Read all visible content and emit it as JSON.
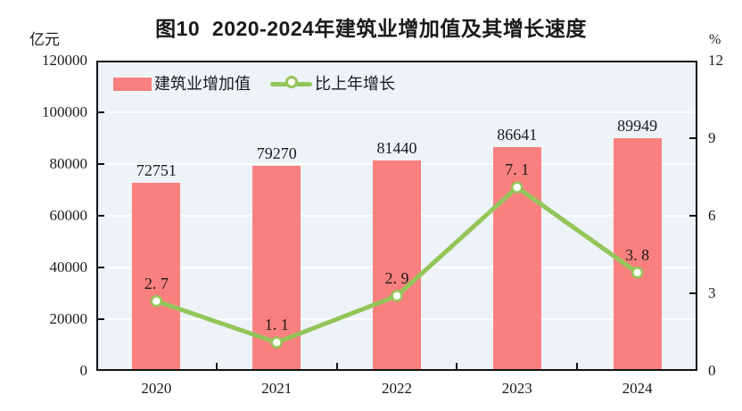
{
  "figure": {
    "title": "图10  2020-2024年建筑业增加值及其增长速度",
    "left_unit": "亿元",
    "right_unit": "%"
  },
  "legend": {
    "bar_label": "建筑业增加值",
    "line_label": "比上年增长"
  },
  "chart_data": {
    "type": "bar+line",
    "title": "图10 2020-2024年建筑业增加值及其增长速度",
    "categories": [
      "2020",
      "2021",
      "2022",
      "2023",
      "2024"
    ],
    "series": [
      {
        "name": "建筑业增加值",
        "type": "bar",
        "axis": "left",
        "unit": "亿元",
        "values": [
          72751,
          79270,
          81440,
          86641,
          89949
        ],
        "labels": [
          "72751",
          "79270",
          "81440",
          "86641",
          "89949"
        ],
        "color": "#fa8080"
      },
      {
        "name": "比上年增长",
        "type": "line",
        "axis": "right",
        "unit": "%",
        "values": [
          2.7,
          1.1,
          2.9,
          7.1,
          3.8
        ],
        "labels": [
          "2. 7",
          "1. 1",
          "2. 9",
          "7. 1",
          "3. 8"
        ],
        "color": "#93c559",
        "marker": "circle",
        "marker_fill": "#fcfef2"
      }
    ],
    "left_axis": {
      "label": "亿元",
      "min": 0,
      "max": 120000,
      "tick_interval": 20000,
      "tick_labels": [
        "120000",
        "100000",
        "80000",
        "60000",
        "40000",
        "20000",
        "0"
      ]
    },
    "right_axis": {
      "label": "%",
      "min": 0,
      "max": 12,
      "tick_interval": 3,
      "tick_labels": [
        "12",
        "9",
        "6",
        "3",
        "0"
      ]
    },
    "grid": true,
    "gridline_color": "#ffffff",
    "legend_position": "top-left-inside",
    "plot_bg": "#edf3f7",
    "frame_color": "#111111"
  }
}
